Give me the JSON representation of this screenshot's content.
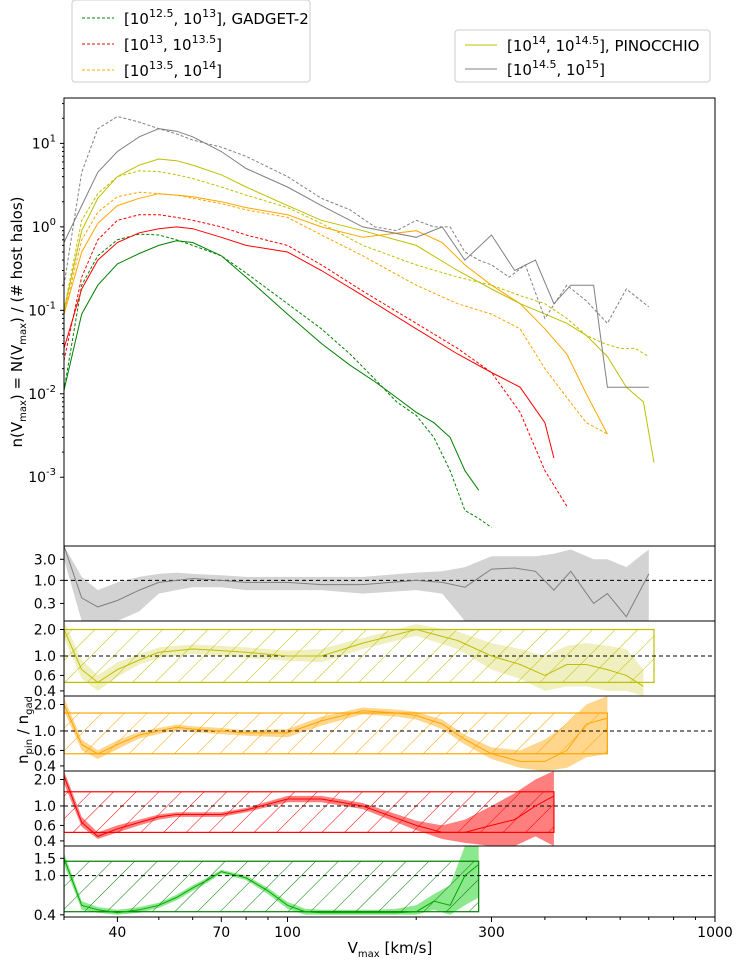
{
  "legend_left": [
    {
      "text": "[10^{12.5}, 10^{13}], GADGET-2",
      "color": "#008000",
      "style": "dashed"
    },
    {
      "text": "[10^{13}, 10^{13.5}]",
      "color": "#ff0000",
      "style": "dashed"
    },
    {
      "text": "[10^{13.5}, 10^{14}]",
      "color": "#ffa500",
      "style": "dashed"
    }
  ],
  "legend_right": [
    {
      "text": "[10^{14}, 10^{14.5}], PINOCCHIO",
      "color": "#bfbf00",
      "style": "solid"
    },
    {
      "text": "[10^{14.5}, 10^{15}]",
      "color": "#808080",
      "style": "solid"
    }
  ],
  "labels": {
    "xlabel_main": "V",
    "xlabel_sub": "max",
    "xlabel_unit": " [km/s]",
    "ylabel_main": "n(V",
    "ylabel_sub": "max",
    "ylabel_mid": ") = N(V",
    "ylabel_sub2": "max",
    "ylabel_end": ") / (# host halos)",
    "ratio_ylabel_main": "n",
    "ratio_ylabel_sub1": "pin",
    "ratio_ylabel_mid": " / n",
    "ratio_ylabel_sub2": "gad"
  },
  "chart_data": [
    {
      "type": "line",
      "panel": "main",
      "xscale": "log",
      "yscale": "log",
      "xlim": [
        30,
        1000
      ],
      "ylim": [
        0.00015,
        35
      ],
      "xticks": [
        "40",
        "70",
        "100",
        "300",
        "1000"
      ],
      "yticks": [
        "10^{-3}",
        "10^{-2}",
        "10^{-1}",
        "10^{0}",
        "10^{1}"
      ],
      "series": [
        {
          "color": "#008000",
          "style": "dashed",
          "x": [
            30,
            33,
            36,
            40,
            45,
            50,
            55,
            60,
            70,
            80,
            100,
            120,
            140,
            160,
            180,
            200,
            220,
            240,
            260,
            280,
            300
          ],
          "y": [
            0.011,
            0.2,
            0.45,
            0.7,
            0.82,
            0.8,
            0.7,
            0.6,
            0.45,
            0.28,
            0.12,
            0.06,
            0.03,
            0.015,
            0.008,
            0.0055,
            0.003,
            0.0012,
            0.0004,
            0.00032,
            0.00025
          ]
        },
        {
          "color": "#008000",
          "style": "solid",
          "x": [
            30,
            33,
            36,
            40,
            45,
            50,
            55,
            60,
            70,
            80,
            100,
            120,
            140,
            160,
            180,
            200,
            220,
            240,
            260,
            280
          ],
          "y": [
            0.011,
            0.09,
            0.2,
            0.36,
            0.48,
            0.6,
            0.68,
            0.65,
            0.45,
            0.25,
            0.09,
            0.04,
            0.022,
            0.014,
            0.009,
            0.006,
            0.0045,
            0.003,
            0.0012,
            0.0007
          ]
        },
        {
          "color": "#ff0000",
          "style": "dashed",
          "x": [
            30,
            33,
            36,
            40,
            45,
            50,
            55,
            60,
            70,
            80,
            100,
            120,
            150,
            200,
            250,
            300,
            350,
            400,
            450
          ],
          "y": [
            0.025,
            0.25,
            0.7,
            1.2,
            1.4,
            1.4,
            1.3,
            1.2,
            1.0,
            0.8,
            0.6,
            0.35,
            0.17,
            0.07,
            0.035,
            0.018,
            0.006,
            0.0012,
            0.00045
          ]
        },
        {
          "color": "#ff0000",
          "style": "solid",
          "x": [
            30,
            33,
            36,
            40,
            45,
            50,
            55,
            60,
            70,
            80,
            100,
            120,
            150,
            200,
            250,
            300,
            350,
            400,
            420
          ],
          "y": [
            0.035,
            0.18,
            0.4,
            0.65,
            0.85,
            0.95,
            1.0,
            0.95,
            0.75,
            0.6,
            0.5,
            0.3,
            0.15,
            0.06,
            0.03,
            0.018,
            0.012,
            0.0045,
            0.0017
          ]
        },
        {
          "color": "#ffa500",
          "style": "dashed",
          "x": [
            30,
            33,
            36,
            40,
            45,
            50,
            55,
            60,
            70,
            80,
            100,
            120,
            150,
            200,
            250,
            300,
            350,
            400,
            450,
            500,
            560
          ],
          "y": [
            0.09,
            0.7,
            1.5,
            2.3,
            2.6,
            2.5,
            2.4,
            2.2,
            1.9,
            1.6,
            1.3,
            0.8,
            0.45,
            0.2,
            0.12,
            0.09,
            0.06,
            0.02,
            0.009,
            0.0045,
            0.0033
          ]
        },
        {
          "color": "#ffa500",
          "style": "solid",
          "x": [
            30,
            33,
            36,
            40,
            45,
            50,
            55,
            60,
            70,
            80,
            100,
            120,
            150,
            200,
            230,
            260,
            300,
            350,
            400,
            450,
            500,
            560
          ],
          "y": [
            0.09,
            0.5,
            1.1,
            1.8,
            2.2,
            2.5,
            2.4,
            2.3,
            2.0,
            1.7,
            1.4,
            1.0,
            0.75,
            0.9,
            0.65,
            0.35,
            0.2,
            0.12,
            0.06,
            0.03,
            0.01,
            0.0033
          ]
        },
        {
          "color": "#bfbf00",
          "style": "dashed",
          "x": [
            30,
            33,
            36,
            40,
            45,
            50,
            55,
            60,
            70,
            80,
            100,
            120,
            150,
            200,
            250,
            300,
            350,
            400,
            450,
            500,
            550,
            600,
            650,
            700
          ],
          "y": [
            0.1,
            1.2,
            2.5,
            4.0,
            4.7,
            4.6,
            4.2,
            3.8,
            3.0,
            2.4,
            1.7,
            1.1,
            0.6,
            0.35,
            0.25,
            0.2,
            0.15,
            0.12,
            0.08,
            0.05,
            0.04,
            0.035,
            0.035,
            0.028
          ]
        },
        {
          "color": "#bfbf00",
          "style": "solid",
          "x": [
            30,
            33,
            36,
            40,
            45,
            50,
            55,
            60,
            70,
            80,
            100,
            120,
            150,
            200,
            250,
            300,
            350,
            400,
            450,
            500,
            560,
            620,
            680,
            720
          ],
          "y": [
            0.1,
            0.9,
            2.2,
            4.0,
            5.5,
            6.5,
            6.2,
            5.5,
            4.2,
            3.0,
            1.8,
            1.2,
            0.9,
            0.6,
            0.3,
            0.18,
            0.12,
            0.09,
            0.07,
            0.05,
            0.028,
            0.012,
            0.008,
            0.0015
          ]
        },
        {
          "color": "#808080",
          "style": "dashed",
          "x": [
            30,
            33,
            36,
            40,
            45,
            50,
            55,
            60,
            70,
            80,
            100,
            120,
            140,
            160,
            180,
            200,
            220,
            240,
            260,
            280,
            300,
            330,
            360,
            400,
            450,
            500,
            560,
            620,
            700
          ],
          "y": [
            0.2,
            4.5,
            15,
            21,
            18,
            15,
            13,
            11,
            9,
            7,
            4,
            2.2,
            1.6,
            1.0,
            0.9,
            1.2,
            1.0,
            1.0,
            0.5,
            0.4,
            0.35,
            0.25,
            0.35,
            0.08,
            0.2,
            0.13,
            0.07,
            0.18,
            0.11
          ]
        },
        {
          "color": "#808080",
          "style": "solid",
          "x": [
            30,
            33,
            36,
            40,
            45,
            50,
            55,
            60,
            70,
            80,
            100,
            120,
            150,
            200,
            230,
            260,
            300,
            340,
            380,
            420,
            460,
            520,
            560,
            620,
            700
          ],
          "y": [
            0.65,
            1.8,
            4.5,
            8,
            12,
            15,
            14,
            12,
            8,
            5,
            3,
            1.8,
            1.0,
            0.75,
            1.0,
            0.4,
            0.8,
            0.3,
            0.4,
            0.12,
            0.2,
            0.2,
            0.012,
            0.012,
            0.012
          ]
        }
      ]
    },
    {
      "type": "area",
      "panel": "ratio-gray",
      "yscale": "log",
      "ylim": [
        0.12,
        6
      ],
      "yticks": [
        "0.3",
        "1.0",
        "3.0"
      ],
      "reference": 1.0,
      "color": "#808080",
      "x": [
        30,
        33,
        36,
        40,
        45,
        50,
        55,
        60,
        70,
        80,
        100,
        120,
        150,
        200,
        230,
        260,
        300,
        340,
        380,
        420,
        460,
        520,
        560,
        620,
        700
      ],
      "center": [
        8,
        0.4,
        0.25,
        0.35,
        0.6,
        0.9,
        1.0,
        1.1,
        1.0,
        0.9,
        0.9,
        0.8,
        0.8,
        1.0,
        0.9,
        0.7,
        1.8,
        1.9,
        1.6,
        0.6,
        1.6,
        0.3,
        0.5,
        0.15,
        1.4
      ],
      "upper": [
        10,
        1.2,
        0.6,
        0.9,
        1.2,
        1.4,
        1.5,
        1.4,
        1.3,
        1.2,
        1.2,
        1.2,
        1.2,
        1.5,
        1.6,
        2.0,
        3.5,
        3.5,
        3.5,
        4.0,
        5.0,
        3.0,
        3.0,
        2.0,
        5.0
      ],
      "lower": [
        3,
        0.12,
        0.12,
        0.12,
        0.2,
        0.5,
        0.6,
        0.7,
        0.7,
        0.6,
        0.6,
        0.6,
        0.5,
        0.6,
        0.5,
        0.12,
        0.12,
        0.12,
        0.12,
        0.12,
        0.12,
        0.12,
        0.12,
        0.12,
        0.12
      ]
    },
    {
      "type": "area",
      "panel": "ratio-olive",
      "yscale": "log",
      "ylim": [
        0.35,
        2.5
      ],
      "yticks": [
        "0.4",
        "0.6",
        "1.0",
        "2.0"
      ],
      "reference": 1.0,
      "color": "#bfbf00",
      "box": {
        "x0": 30,
        "x1": 720,
        "y0": 0.5,
        "y1": 2.0
      },
      "x": [
        30,
        33,
        36,
        40,
        45,
        50,
        55,
        60,
        70,
        80,
        100,
        120,
        150,
        200,
        250,
        300,
        350,
        400,
        450,
        500,
        560,
        620,
        680
      ],
      "center": [
        2.0,
        0.7,
        0.5,
        0.7,
        0.9,
        1.1,
        1.15,
        1.2,
        1.15,
        1.1,
        1.0,
        1.0,
        1.4,
        2.0,
        1.5,
        1.0,
        0.8,
        0.6,
        0.8,
        0.8,
        0.7,
        0.6,
        0.45
      ],
      "upper": [
        2.5,
        0.9,
        0.6,
        0.85,
        1.05,
        1.25,
        1.3,
        1.35,
        1.3,
        1.25,
        1.15,
        1.2,
        1.6,
        2.3,
        1.9,
        1.4,
        1.2,
        1.0,
        1.3,
        1.4,
        1.3,
        1.2,
        0.7
      ],
      "lower": [
        1.6,
        0.55,
        0.4,
        0.58,
        0.8,
        0.95,
        1.0,
        1.05,
        1.0,
        0.95,
        0.88,
        0.85,
        1.2,
        1.7,
        1.2,
        0.7,
        0.55,
        0.4,
        0.45,
        0.45,
        0.4,
        0.4,
        0.35
      ]
    },
    {
      "type": "area",
      "panel": "ratio-orange",
      "yscale": "log",
      "ylim": [
        0.35,
        2.5
      ],
      "yticks": [
        "0.4",
        "0.6",
        "1.0",
        "2.0"
      ],
      "reference": 1.0,
      "color": "#ffa500",
      "box": {
        "x0": 30,
        "x1": 560,
        "y0": 0.55,
        "y1": 1.6
      },
      "x": [
        30,
        33,
        36,
        40,
        45,
        50,
        55,
        60,
        70,
        80,
        100,
        120,
        150,
        180,
        200,
        230,
        260,
        300,
        350,
        400,
        450,
        500,
        560
      ],
      "center": [
        2.0,
        0.7,
        0.55,
        0.7,
        0.9,
        1.0,
        1.1,
        1.05,
        1.0,
        0.95,
        0.95,
        1.3,
        1.7,
        1.6,
        1.5,
        1.2,
        0.8,
        0.55,
        0.45,
        0.45,
        0.6,
        1.2,
        1.4
      ],
      "upper": [
        2.4,
        0.8,
        0.6,
        0.78,
        0.98,
        1.08,
        1.18,
        1.13,
        1.08,
        1.02,
        1.05,
        1.45,
        1.85,
        1.75,
        1.65,
        1.35,
        0.9,
        0.65,
        0.6,
        0.8,
        1.2,
        2.0,
        2.5
      ],
      "lower": [
        1.7,
        0.6,
        0.48,
        0.62,
        0.82,
        0.92,
        1.02,
        0.97,
        0.92,
        0.88,
        0.85,
        1.15,
        1.55,
        1.45,
        1.35,
        1.05,
        0.7,
        0.48,
        0.38,
        0.35,
        0.38,
        0.5,
        0.55
      ]
    },
    {
      "type": "area",
      "panel": "ratio-red",
      "yscale": "log",
      "ylim": [
        0.35,
        2.5
      ],
      "yticks": [
        "0.4",
        "0.6",
        "1.0",
        "2.0"
      ],
      "reference": 1.0,
      "color": "#ff0000",
      "box": {
        "x0": 30,
        "x1": 420,
        "y0": 0.5,
        "y1": 1.45
      },
      "x": [
        30,
        33,
        36,
        40,
        45,
        50,
        55,
        60,
        70,
        80,
        100,
        120,
        150,
        200,
        230,
        260,
        300,
        340,
        380,
        420
      ],
      "center": [
        2.2,
        0.65,
        0.45,
        0.55,
        0.65,
        0.75,
        0.8,
        0.8,
        0.8,
        0.9,
        1.2,
        1.2,
        1.0,
        0.6,
        0.5,
        0.5,
        0.6,
        0.7,
        1.0,
        1.3
      ],
      "upper": [
        2.5,
        0.75,
        0.5,
        0.6,
        0.7,
        0.8,
        0.85,
        0.85,
        0.85,
        0.95,
        1.3,
        1.3,
        1.08,
        0.68,
        0.6,
        0.7,
        1.0,
        1.4,
        2.0,
        2.5
      ],
      "lower": [
        1.8,
        0.58,
        0.42,
        0.5,
        0.6,
        0.7,
        0.75,
        0.75,
        0.75,
        0.85,
        1.1,
        1.1,
        0.92,
        0.53,
        0.42,
        0.38,
        0.35,
        0.35,
        0.45,
        0.35
      ]
    },
    {
      "type": "area",
      "panel": "ratio-green",
      "yscale": "log",
      "ylim": [
        0.38,
        2.0
      ],
      "yticks": [
        "0.4",
        "1.0",
        "1.5"
      ],
      "reference": 1.0,
      "color": "#00cc00",
      "box": {
        "x0": 30,
        "x1": 280,
        "y0": 0.43,
        "y1": 1.4
      },
      "x": [
        30,
        33,
        36,
        40,
        45,
        50,
        55,
        60,
        65,
        70,
        80,
        90,
        100,
        110,
        120,
        140,
        160,
        180,
        200,
        220,
        240,
        260,
        280
      ],
      "center": [
        1.5,
        0.5,
        0.45,
        0.42,
        0.45,
        0.5,
        0.6,
        0.75,
        0.9,
        1.1,
        0.95,
        0.7,
        0.5,
        0.43,
        0.42,
        0.42,
        0.42,
        0.42,
        0.43,
        0.55,
        0.5,
        1.0,
        1.3
      ],
      "upper": [
        1.7,
        0.55,
        0.48,
        0.45,
        0.48,
        0.53,
        0.64,
        0.8,
        0.95,
        1.15,
        1.0,
        0.75,
        0.54,
        0.46,
        0.45,
        0.45,
        0.45,
        0.46,
        0.5,
        0.65,
        0.8,
        2.0,
        2.0
      ],
      "lower": [
        1.3,
        0.45,
        0.42,
        0.4,
        0.42,
        0.47,
        0.56,
        0.7,
        0.85,
        1.05,
        0.9,
        0.65,
        0.46,
        0.4,
        0.4,
        0.4,
        0.4,
        0.4,
        0.4,
        0.45,
        0.4,
        0.5,
        0.6
      ]
    }
  ]
}
